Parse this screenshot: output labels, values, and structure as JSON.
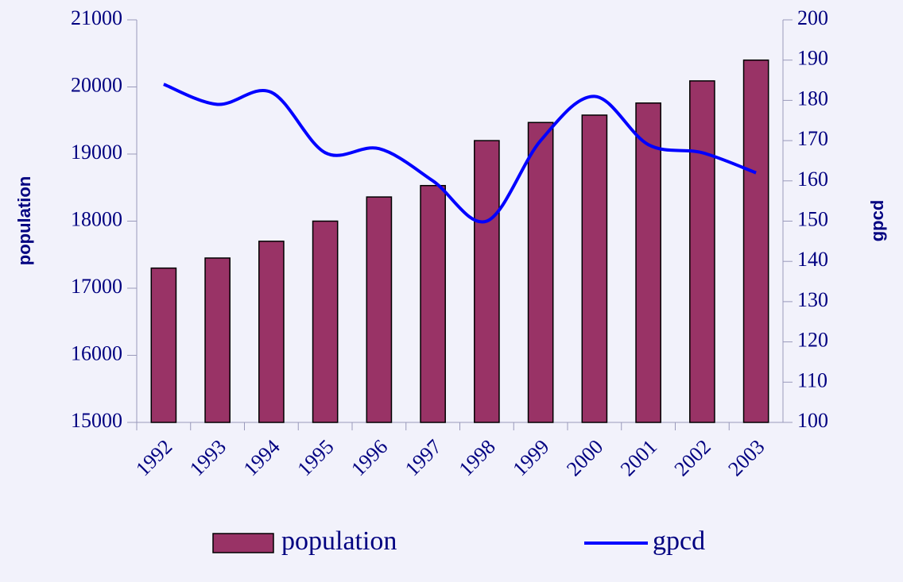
{
  "chart_data": {
    "type": "bar_line",
    "categories": [
      "1992",
      "1993",
      "1994",
      "1995",
      "1996",
      "1997",
      "1998",
      "1999",
      "2000",
      "2001",
      "2002",
      "2003"
    ],
    "series": [
      {
        "name": "population",
        "type": "bar",
        "color": "#993366",
        "values": [
          17300,
          17450,
          17700,
          18000,
          18360,
          18530,
          19200,
          19470,
          19580,
          19760,
          20090,
          20400
        ]
      },
      {
        "name": "gpcd",
        "type": "line",
        "axis": "y2",
        "color": "#0000ff",
        "values": [
          184,
          179,
          182,
          167,
          168,
          160,
          150,
          170,
          181,
          169,
          167,
          162
        ]
      }
    ],
    "ylabel": "population",
    "y2label": "gpcd",
    "ylim": [
      15000,
      21000
    ],
    "yticks": [
      15000,
      16000,
      17000,
      18000,
      19000,
      20000,
      21000
    ],
    "y2lim": [
      100,
      200
    ],
    "y2ticks": [
      100,
      110,
      120,
      130,
      140,
      150,
      160,
      170,
      180,
      190,
      200
    ],
    "legend": "bottom"
  }
}
